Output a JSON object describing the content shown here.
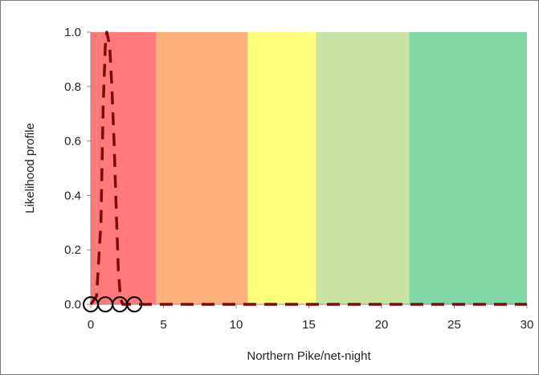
{
  "chart_data": {
    "type": "line",
    "title": "",
    "xlabel": "Northern Pike/net-night",
    "ylabel": "Likelihood profile",
    "xlim": [
      0,
      30
    ],
    "ylim": [
      0,
      1
    ],
    "x_ticks": [
      0,
      5,
      10,
      15,
      20,
      25,
      30
    ],
    "y_ticks": [
      0.0,
      0.2,
      0.4,
      0.6,
      0.8,
      1.0
    ],
    "x_tick_labels": [
      "0",
      "5",
      "10",
      "15",
      "20",
      "25",
      "30"
    ],
    "y_tick_labels": [
      "0.0",
      "0.2",
      "0.4",
      "0.6",
      "0.8",
      "1.0"
    ],
    "grid": false,
    "legend": "none",
    "bands": [
      {
        "from": 0,
        "to": 4.5,
        "color": "#ff7b7b"
      },
      {
        "from": 4.5,
        "to": 10.8,
        "color": "#ffb07b"
      },
      {
        "from": 10.8,
        "to": 15.5,
        "color": "#ffff7b"
      },
      {
        "from": 15.5,
        "to": 21.9,
        "color": "#c8e3a4"
      },
      {
        "from": 21.9,
        "to": 30,
        "color": "#80d6a4"
      }
    ],
    "series": [
      {
        "style": "dashed",
        "color": "#7a0c0c",
        "x": [
          0,
          0.4,
          0.7,
          0.85,
          1.0,
          1.1,
          1.3,
          1.45,
          1.6,
          1.75,
          1.9,
          2.05,
          2.2,
          2.5,
          3,
          5,
          10,
          15,
          20,
          25,
          30
        ],
        "y": [
          0.0,
          0.03,
          0.3,
          0.72,
          0.95,
          1.0,
          0.95,
          0.8,
          0.6,
          0.35,
          0.12,
          0.02,
          0.0,
          0.0,
          0.0,
          0.0,
          0.0,
          0.0,
          0.0,
          0.0,
          0.0
        ]
      }
    ],
    "observations": {
      "marker": "open-circle",
      "color": "#000000",
      "x": [
        0,
        1,
        2,
        3
      ],
      "y": [
        0,
        0,
        0,
        0
      ]
    }
  }
}
